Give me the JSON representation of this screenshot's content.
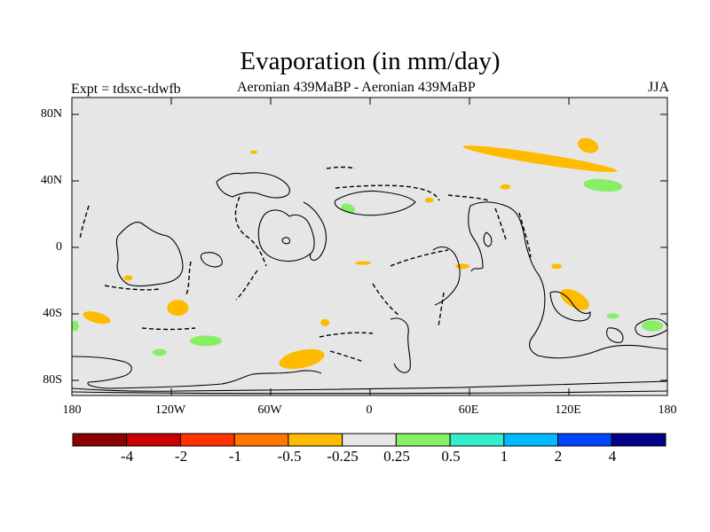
{
  "header": {
    "title": "Evaporation (in mm/day)",
    "experiment": "Expt = tdsxc-tdwfb",
    "comparison": "Aeronian 439MaBP - Aeronian 439MaBP",
    "season": "JJA"
  },
  "map": {
    "background_color": "#e6e6e6",
    "lat_ticks": [
      "80N",
      "40N",
      "0",
      "40S",
      "80S"
    ],
    "lon_ticks": [
      "180",
      "120W",
      "60W",
      "0",
      "60E",
      "120E",
      "180"
    ],
    "lat_range": [
      -90,
      90
    ],
    "lon_range": [
      -180,
      180
    ]
  },
  "colorbar": {
    "colors": [
      "#8b0000",
      "#cc0000",
      "#ff3300",
      "#ff7700",
      "#ffbb00",
      "#e6e6e6",
      "#88ee66",
      "#33eecc",
      "#00bbff",
      "#0044ff",
      "#000088"
    ],
    "labels": [
      "-4",
      "-2",
      "-1",
      "-0.5",
      "-0.25",
      "0.25",
      "0.5",
      "1",
      "2",
      "4"
    ]
  },
  "anomalies": [
    {
      "category": "-0.25",
      "color": "#ffbb00",
      "lon": 103,
      "lat": 53
    },
    {
      "category": "-0.25",
      "color": "#ffbb00",
      "lon": 132,
      "lat": 61
    },
    {
      "category": "-0.25",
      "color": "#ffbb00",
      "lon": -70,
      "lat": 57
    },
    {
      "category": "-0.25",
      "color": "#ffbb00",
      "lon": 36,
      "lat": 28
    },
    {
      "category": "-0.25",
      "color": "#ffbb00",
      "lon": 82,
      "lat": 36
    },
    {
      "category": "-0.25",
      "color": "#ffbb00",
      "lon": 124,
      "lat": -32
    },
    {
      "category": "-0.25",
      "color": "#ffbb00",
      "lon": 113,
      "lat": -12
    },
    {
      "category": "-0.25",
      "color": "#ffbb00",
      "lon": -4,
      "lat": -10
    },
    {
      "category": "-0.25",
      "color": "#ffbb00",
      "lon": 56,
      "lat": -12
    },
    {
      "category": "-0.25",
      "color": "#ffbb00",
      "lon": -165,
      "lat": -43
    },
    {
      "category": "-0.25",
      "color": "#ffbb00",
      "lon": -116,
      "lat": -37
    },
    {
      "category": "-0.25",
      "color": "#ffbb00",
      "lon": -41,
      "lat": -68
    },
    {
      "category": "-0.25",
      "color": "#ffbb00",
      "lon": -27,
      "lat": -46
    },
    {
      "category": "-0.25",
      "color": "#ffbb00",
      "lon": -146,
      "lat": -19
    },
    {
      "category": "0.25",
      "color": "#88ee66",
      "lon": 141,
      "lat": 37
    },
    {
      "category": "0.25",
      "color": "#88ee66",
      "lon": -99,
      "lat": -57
    },
    {
      "category": "0.25",
      "color": "#88ee66",
      "lon": 171,
      "lat": -48
    },
    {
      "category": "0.25",
      "color": "#88ee66",
      "lon": -13,
      "lat": 23
    },
    {
      "category": "0.25",
      "color": "#88ee66",
      "lon": -178,
      "lat": -48
    },
    {
      "category": "0.25",
      "color": "#88ee66",
      "lon": -127,
      "lat": -64
    },
    {
      "category": "0.25",
      "color": "#88ee66",
      "lon": 147,
      "lat": -42
    }
  ]
}
